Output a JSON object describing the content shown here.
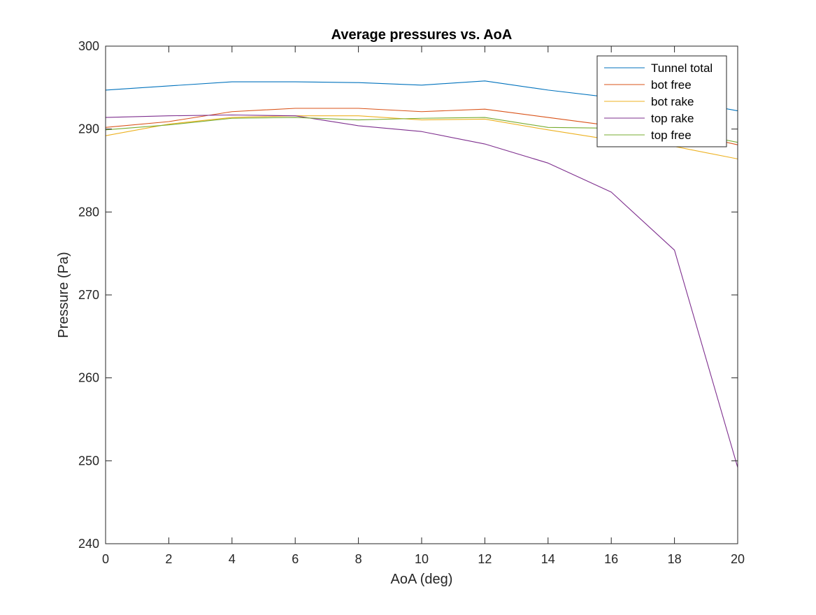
{
  "chart_data": {
    "type": "line",
    "title": "Average pressures vs. AoA",
    "xlabel": "AoA (deg)",
    "ylabel": "Pressure (Pa)",
    "xlim": [
      0,
      20
    ],
    "ylim": [
      240,
      300
    ],
    "xticks": [
      0,
      2,
      4,
      6,
      8,
      10,
      12,
      14,
      16,
      18,
      20
    ],
    "yticks": [
      240,
      250,
      260,
      270,
      280,
      290,
      300
    ],
    "grid": false,
    "legend_position": "top-right",
    "x": [
      0,
      2,
      4,
      6,
      8,
      10,
      12,
      14,
      16,
      18,
      20
    ],
    "series": [
      {
        "name": "Tunnel total",
        "color": "#0072BD",
        "values": [
          294.7,
          295.2,
          295.7,
          295.7,
          295.6,
          295.3,
          295.8,
          294.7,
          293.8,
          293.6,
          292.2
        ]
      },
      {
        "name": "bot free",
        "color": "#D95319",
        "values": [
          290.2,
          290.9,
          292.1,
          292.5,
          292.5,
          292.1,
          292.4,
          291.4,
          290.4,
          289.8,
          288.1
        ]
      },
      {
        "name": "bot rake",
        "color": "#EDB120",
        "values": [
          289.2,
          290.6,
          291.4,
          291.6,
          291.6,
          291.1,
          291.2,
          289.9,
          288.7,
          287.9,
          286.4
        ]
      },
      {
        "name": "top rake",
        "color": "#7E2F8E",
        "values": [
          291.4,
          291.6,
          291.7,
          291.6,
          290.4,
          289.7,
          288.2,
          285.9,
          282.4,
          275.4,
          249.2
        ]
      },
      {
        "name": "top free",
        "color": "#77AC30",
        "values": [
          289.9,
          290.5,
          291.3,
          291.4,
          291.1,
          291.3,
          291.4,
          290.2,
          290.1,
          289.9,
          288.4
        ]
      }
    ]
  }
}
